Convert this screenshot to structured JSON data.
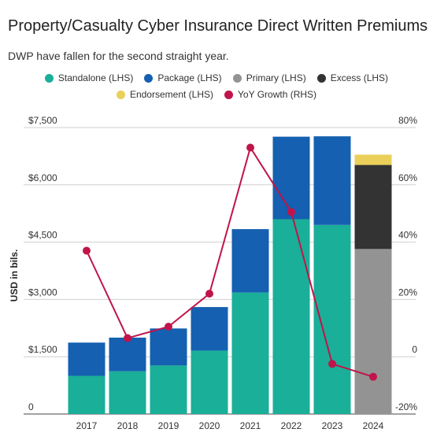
{
  "chart_data": {
    "type": "bar",
    "title": "Property/Casualty Cyber Insurance Direct Written Premiums",
    "subtitle": "DWP have fallen for the second straight year.",
    "ylabel": "USD in bils.",
    "categories": [
      "2017",
      "2018",
      "2019",
      "2020",
      "2021",
      "2022",
      "2023",
      "2024"
    ],
    "y_ticks": [
      "0",
      "$1,500",
      "$3,000",
      "$4,500",
      "$6,000",
      "$7,500"
    ],
    "y2_ticks": [
      "-20%",
      "0",
      "20%",
      "40%",
      "60%",
      "80%"
    ],
    "ylim": [
      0,
      7500
    ],
    "y2lim": [
      -20,
      80
    ],
    "stacked": true,
    "grid": true,
    "legend_placement": "top",
    "series": [
      {
        "name": "Standalone (LHS)",
        "kind": "bar",
        "color": "#1aaf98",
        "values": [
          1000,
          1120,
          1270,
          1660,
          3180,
          5100,
          4950,
          0
        ]
      },
      {
        "name": "Package (LHS)",
        "kind": "bar",
        "color": "#1560b0",
        "values": [
          870,
          880,
          970,
          1140,
          1660,
          2160,
          2320,
          0
        ]
      },
      {
        "name": "Primary (LHS)",
        "kind": "bar",
        "color": "#939393",
        "values": [
          0,
          0,
          0,
          0,
          0,
          0,
          0,
          4320
        ]
      },
      {
        "name": "Excess (LHS)",
        "kind": "bar",
        "color": "#333333",
        "values": [
          0,
          0,
          0,
          0,
          0,
          0,
          0,
          2200
        ]
      },
      {
        "name": "Endorsement (LHS)",
        "kind": "bar",
        "color": "#ead05a",
        "values": [
          0,
          0,
          0,
          0,
          0,
          0,
          0,
          270
        ]
      },
      {
        "name": "YoY Growth (RHS)",
        "kind": "line",
        "axis": "right",
        "color": "#c0144a",
        "values": [
          37,
          6.5,
          10.5,
          22,
          73,
          50.5,
          -2.5,
          -7
        ]
      }
    ]
  }
}
